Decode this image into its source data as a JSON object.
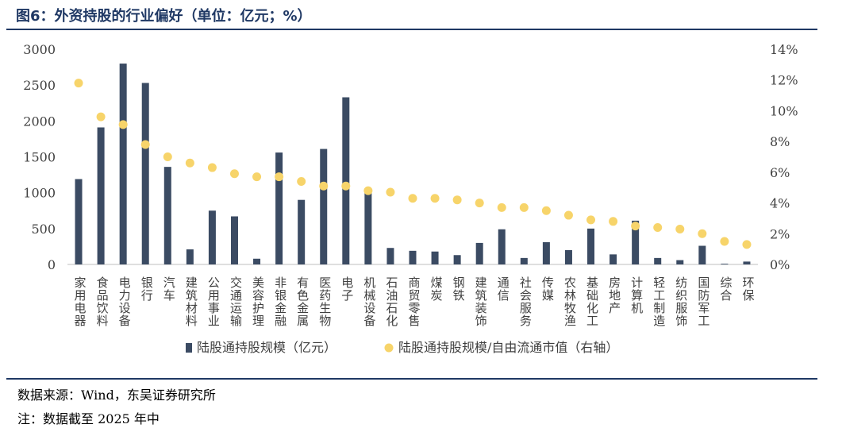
{
  "figure": {
    "title": "图6：外资持股的行业偏好（单位：亿元；%）",
    "source": "数据来源：Wind，东吴证券研究所",
    "note": "注：数据截至 2025 年中"
  },
  "colors": {
    "title": "#1f3864",
    "bar": "#3b4b63",
    "dot": "#f7d46a",
    "axis": "#595959"
  },
  "chart_data": {
    "type": "bar",
    "categories": [
      "家用电器",
      "食品饮料",
      "电力设备",
      "银行",
      "汽车",
      "建筑材料",
      "公用事业",
      "交通运输",
      "美容护理",
      "非银金融",
      "有色金属",
      "医药生物",
      "电子",
      "机械设备",
      "石油石化",
      "商贸零售",
      "煤炭",
      "钢铁",
      "建筑装饰",
      "通信",
      "社会服务",
      "传媒",
      "农林牧渔",
      "基础化工",
      "房地产",
      "计算机",
      "轻工制造",
      "纺织服饰",
      "国防军工",
      "综合",
      "环保"
    ],
    "series": [
      {
        "name": "陆股通持股规模（亿元）",
        "type": "bar",
        "axis": "left",
        "values": [
          1190,
          1910,
          2800,
          2530,
          1360,
          210,
          750,
          670,
          80,
          1560,
          900,
          1610,
          2330,
          1060,
          230,
          190,
          180,
          130,
          300,
          490,
          90,
          310,
          200,
          500,
          140,
          610,
          90,
          60,
          260,
          10,
          40
        ]
      },
      {
        "name": "陆股通持股规模/自由流通市值（右轴）",
        "type": "scatter",
        "axis": "right",
        "values": [
          11.8,
          9.6,
          9.1,
          7.8,
          7.0,
          6.6,
          6.3,
          5.9,
          5.7,
          5.7,
          5.4,
          5.1,
          5.1,
          4.8,
          4.7,
          4.3,
          4.3,
          4.2,
          4.0,
          3.7,
          3.7,
          3.5,
          3.2,
          2.9,
          2.8,
          2.5,
          2.4,
          2.3,
          2.0,
          1.5,
          1.3
        ]
      }
    ],
    "left_axis": {
      "min": 0,
      "max": 3000,
      "ticks": [
        "0",
        "500",
        "1000",
        "1500",
        "2000",
        "2500",
        "3000"
      ]
    },
    "right_axis": {
      "min": 0,
      "max": 14,
      "ticks": [
        "0%",
        "2%",
        "4%",
        "6%",
        "8%",
        "10%",
        "12%",
        "14%"
      ]
    },
    "grid": false,
    "legend_position": "bottom"
  }
}
